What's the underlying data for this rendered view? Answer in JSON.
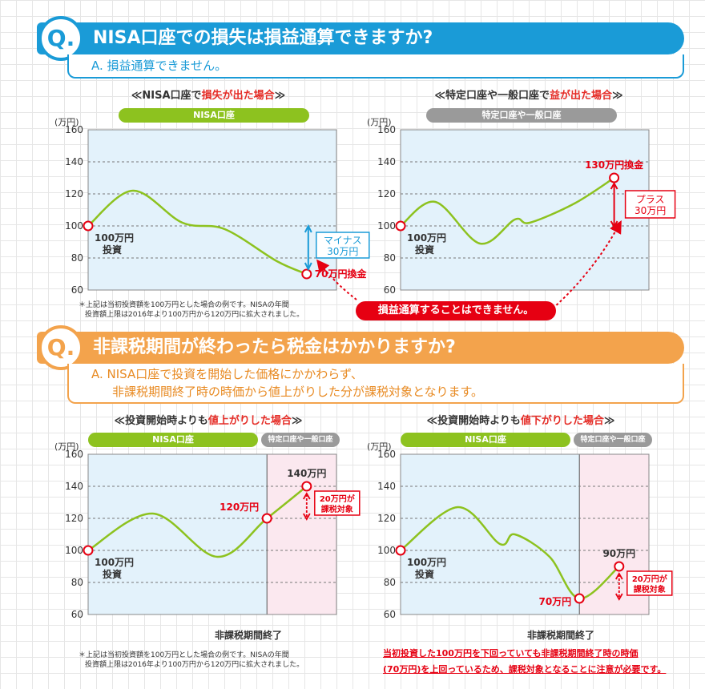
{
  "q1": {
    "badge": "Q.",
    "question": "NISA口座での損失は損益通算できますか?",
    "answer": "A. 損益通算できません。"
  },
  "q1_left": {
    "title_pre": "≪NISA口座で",
    "title_hl": "損失が出た場合",
    "title_post": "≫",
    "pill": "NISA口座"
  },
  "q1_right": {
    "title_pre": "≪特定口座や一般口座で",
    "title_hl": "益が出た場合",
    "title_post": "≫",
    "pill": "特定口座や一般口座"
  },
  "q1_note": [
    "＊上記は当初投資額を100万円とした場合の例です。NISAの年間",
    "投資額上限は2016年より100万円から120万円に拡大されました。"
  ],
  "q1_banner": "損益通算することはできません。",
  "q2": {
    "badge": "Q.",
    "question": "非課税期間が終わったら税金はかかりますか?",
    "answer_line1": "A. NISA口座で投資を開始した価格にかかわらず、",
    "answer_line2": "非課税期間終了時の時価から値上がりした分が課税対象となります。"
  },
  "q2_left": {
    "title_pre": "≪投資開始時よりも",
    "title_hl": "値上がりした場合",
    "title_post": "≫",
    "pill_green": "NISA口座",
    "pill_gray": "特定口座や一般口座",
    "end_label": "非課税期間終了"
  },
  "q2_right": {
    "title_pre": "≪投資開始時よりも",
    "title_hl": "値下がりした場合",
    "title_post": "≫",
    "pill_green": "NISA口座",
    "pill_gray": "特定口座や一般口座",
    "end_label": "非課税期間終了"
  },
  "q2_note": [
    "＊上記は当初投資額を100万円とした場合の例です。NISAの年間",
    "投資額上限は2016年より100万円から120万円に拡大されました。"
  ],
  "q2_red_note": [
    "当初投資した100万円を下回っていても非課税期間終了時の時価",
    "(70万円)を上回っているため、課税対象となることに注意が必要です。"
  ],
  "chart_data": [
    {
      "type": "line",
      "ylabel": "(万円)",
      "ylim": [
        60,
        160
      ],
      "yticks": [
        60,
        80,
        100,
        120,
        140,
        160
      ],
      "grid": true,
      "series": [
        {
          "x": [
            0,
            0.18,
            0.38,
            0.55,
            0.76,
            0.88
          ],
          "values": [
            100,
            122,
            102,
            98,
            78,
            70
          ]
        }
      ],
      "annotations": {
        "start_line1": "100万円",
        "start_line2": "投資",
        "end": "70万円換金",
        "diff_line1": "マイナス",
        "diff_line2": "30万円"
      },
      "colors": {
        "line": "#8dc21f",
        "bg": "#e3f2fb",
        "marker": "#e60012",
        "diff": "#1a9bd7"
      }
    },
    {
      "type": "line",
      "ylabel": "(万円)",
      "ylim": [
        60,
        160
      ],
      "yticks": [
        60,
        80,
        100,
        120,
        140,
        160
      ],
      "grid": true,
      "series": [
        {
          "x": [
            0,
            0.14,
            0.32,
            0.46,
            0.52,
            0.7,
            0.86
          ],
          "values": [
            100,
            115,
            89,
            104,
            102,
            114,
            130
          ]
        }
      ],
      "annotations": {
        "start_line1": "100万円",
        "start_line2": "投資",
        "end": "130万円換金",
        "diff_line1": "プラス",
        "diff_line2": "30万円"
      },
      "colors": {
        "line": "#8dc21f",
        "bg": "#e3f2fb",
        "marker": "#e60012",
        "diff": "#e60012"
      }
    },
    {
      "type": "line",
      "ylabel": "(万円)",
      "ylim": [
        60,
        160
      ],
      "yticks": [
        60,
        80,
        100,
        120,
        140,
        160
      ],
      "grid": true,
      "series": [
        {
          "x": [
            0,
            0.26,
            0.52,
            0.72,
            0.88
          ],
          "values": [
            100,
            123,
            96,
            120,
            140
          ]
        }
      ],
      "annotations": {
        "start_line1": "100万円",
        "start_line2": "投資",
        "mid": "120万円",
        "end": "140万円",
        "diff_line1": "20万円が",
        "diff_line2": "課税対象"
      },
      "period_end_x": 0.72,
      "colors": {
        "line": "#8dc21f",
        "bg": "#e3f2fb",
        "bg_after": "#fbe8ef",
        "marker": "#e60012",
        "diff": "#e60012"
      }
    },
    {
      "type": "line",
      "ylabel": "(万円)",
      "ylim": [
        60,
        160
      ],
      "yticks": [
        60,
        80,
        100,
        120,
        140,
        160
      ],
      "grid": true,
      "series": [
        {
          "x": [
            0,
            0.23,
            0.4,
            0.46,
            0.6,
            0.72,
            0.88
          ],
          "values": [
            100,
            127,
            104,
            110,
            96,
            70,
            90
          ]
        }
      ],
      "annotations": {
        "start_line1": "100万円",
        "start_line2": "投資",
        "mid": "70万円",
        "end": "90万円",
        "diff_line1": "20万円が",
        "diff_line2": "課税対象"
      },
      "period_end_x": 0.72,
      "colors": {
        "line": "#8dc21f",
        "bg": "#e3f2fb",
        "bg_after": "#fbe8ef",
        "marker": "#e60012",
        "diff": "#e60012"
      }
    }
  ]
}
